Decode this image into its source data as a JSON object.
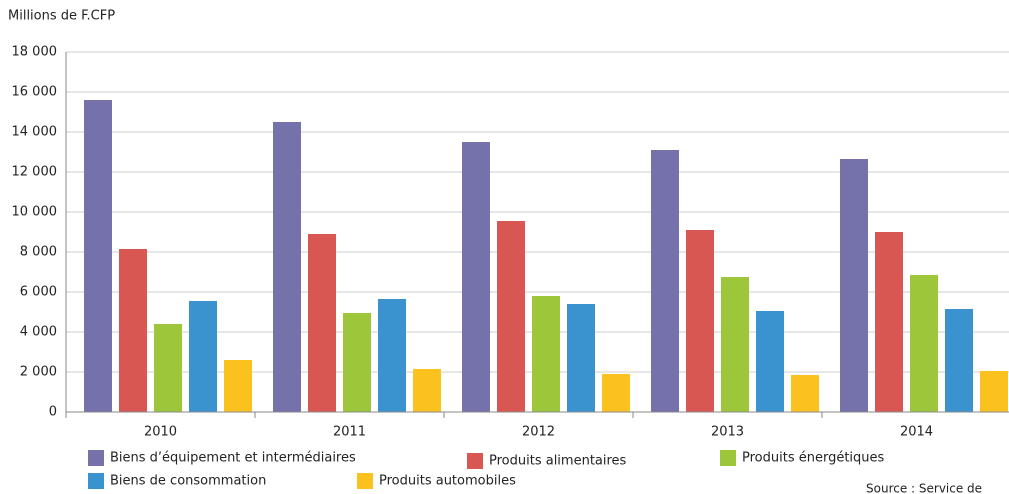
{
  "chart_data": {
    "type": "bar",
    "y_label": "Millions de F.CFP",
    "categories": [
      "2010",
      "2011",
      "2012",
      "2013",
      "2014"
    ],
    "series": [
      {
        "name": "Biens d’équipement et intermédiaires",
        "color": "#7571ab",
        "values": [
          15600,
          14500,
          13500,
          13100,
          12650
        ]
      },
      {
        "name": "Produits alimentaires",
        "color": "#d95752",
        "values": [
          8150,
          8900,
          9550,
          9100,
          9000
        ]
      },
      {
        "name": "Produits énergétiques",
        "color": "#9dc63b",
        "values": [
          4400,
          4950,
          5800,
          6750,
          6850
        ]
      },
      {
        "name": "Biens de consommation",
        "color": "#3a93cf",
        "values": [
          5550,
          5650,
          5400,
          5050,
          5150
        ]
      },
      {
        "name": "Produits automobiles",
        "color": "#fbc11f",
        "values": [
          2600,
          2150,
          1900,
          1850,
          2050
        ]
      }
    ],
    "ylim": [
      0,
      18000
    ],
    "yticks": [
      0,
      {
        "value": 2000,
        "label": "2 000"
      },
      {
        "value": 4000,
        "label": "4 000"
      },
      {
        "value": 6000,
        "label": "6 000"
      },
      {
        "value": 8000,
        "label": "8 000"
      },
      {
        "value": 10000,
        "label": "10 000"
      },
      {
        "value": 12000,
        "label": "12 000"
      },
      {
        "value": 14000,
        "label": "14 000"
      },
      {
        "value": 16000,
        "label": "16 000"
      },
      {
        "value": 18000,
        "label": "18 000"
      }
    ],
    "grid": true,
    "source": "Source : Service de"
  }
}
